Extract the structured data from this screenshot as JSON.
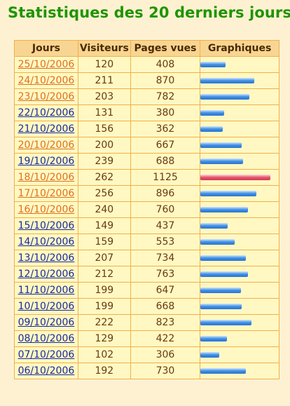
{
  "title": "Statistiques des 20 derniers jours :",
  "columns": [
    "Jours",
    "Visiteurs",
    "Pages vues",
    "Graphiques"
  ],
  "rows": [
    {
      "date": "25/10/2006",
      "visitors": "120",
      "pages": "408",
      "link": "visited"
    },
    {
      "date": "24/10/2006",
      "visitors": "211",
      "pages": "870",
      "link": "visited"
    },
    {
      "date": "23/10/2006",
      "visitors": "203",
      "pages": "782",
      "link": "visited"
    },
    {
      "date": "22/10/2006",
      "visitors": "131",
      "pages": "380",
      "link": "unvisited"
    },
    {
      "date": "21/10/2006",
      "visitors": "156",
      "pages": "362",
      "link": "unvisited"
    },
    {
      "date": "20/10/2006",
      "visitors": "200",
      "pages": "667",
      "link": "visited"
    },
    {
      "date": "19/10/2006",
      "visitors": "239",
      "pages": "688",
      "link": "unvisited"
    },
    {
      "date": "18/10/2006",
      "visitors": "262",
      "pages": "1125",
      "link": "visited",
      "highlight": true
    },
    {
      "date": "17/10/2006",
      "visitors": "256",
      "pages": "896",
      "link": "visited"
    },
    {
      "date": "16/10/2006",
      "visitors": "240",
      "pages": "760",
      "link": "visited"
    },
    {
      "date": "15/10/2006",
      "visitors": "149",
      "pages": "437",
      "link": "unvisited"
    },
    {
      "date": "14/10/2006",
      "visitors": "159",
      "pages": "553",
      "link": "unvisited"
    },
    {
      "date": "13/10/2006",
      "visitors": "207",
      "pages": "734",
      "link": "unvisited"
    },
    {
      "date": "12/10/2006",
      "visitors": "212",
      "pages": "763",
      "link": "unvisited"
    },
    {
      "date": "11/10/2006",
      "visitors": "199",
      "pages": "647",
      "link": "unvisited"
    },
    {
      "date": "10/10/2006",
      "visitors": "199",
      "pages": "668",
      "link": "unvisited"
    },
    {
      "date": "09/10/2006",
      "visitors": "222",
      "pages": "823",
      "link": "unvisited"
    },
    {
      "date": "08/10/2006",
      "visitors": "129",
      "pages": "422",
      "link": "unvisited"
    },
    {
      "date": "07/10/2006",
      "visitors": "102",
      "pages": "306",
      "link": "unvisited"
    },
    {
      "date": "06/10/2006",
      "visitors": "192",
      "pages": "730",
      "link": "unvisited"
    }
  ],
  "colors": {
    "title": "#1f9400",
    "bar": "#3f8fe4",
    "bar_max": "#e4546a",
    "link_visited": "#e07020",
    "link_unvisited": "#1a2aa0"
  }
}
